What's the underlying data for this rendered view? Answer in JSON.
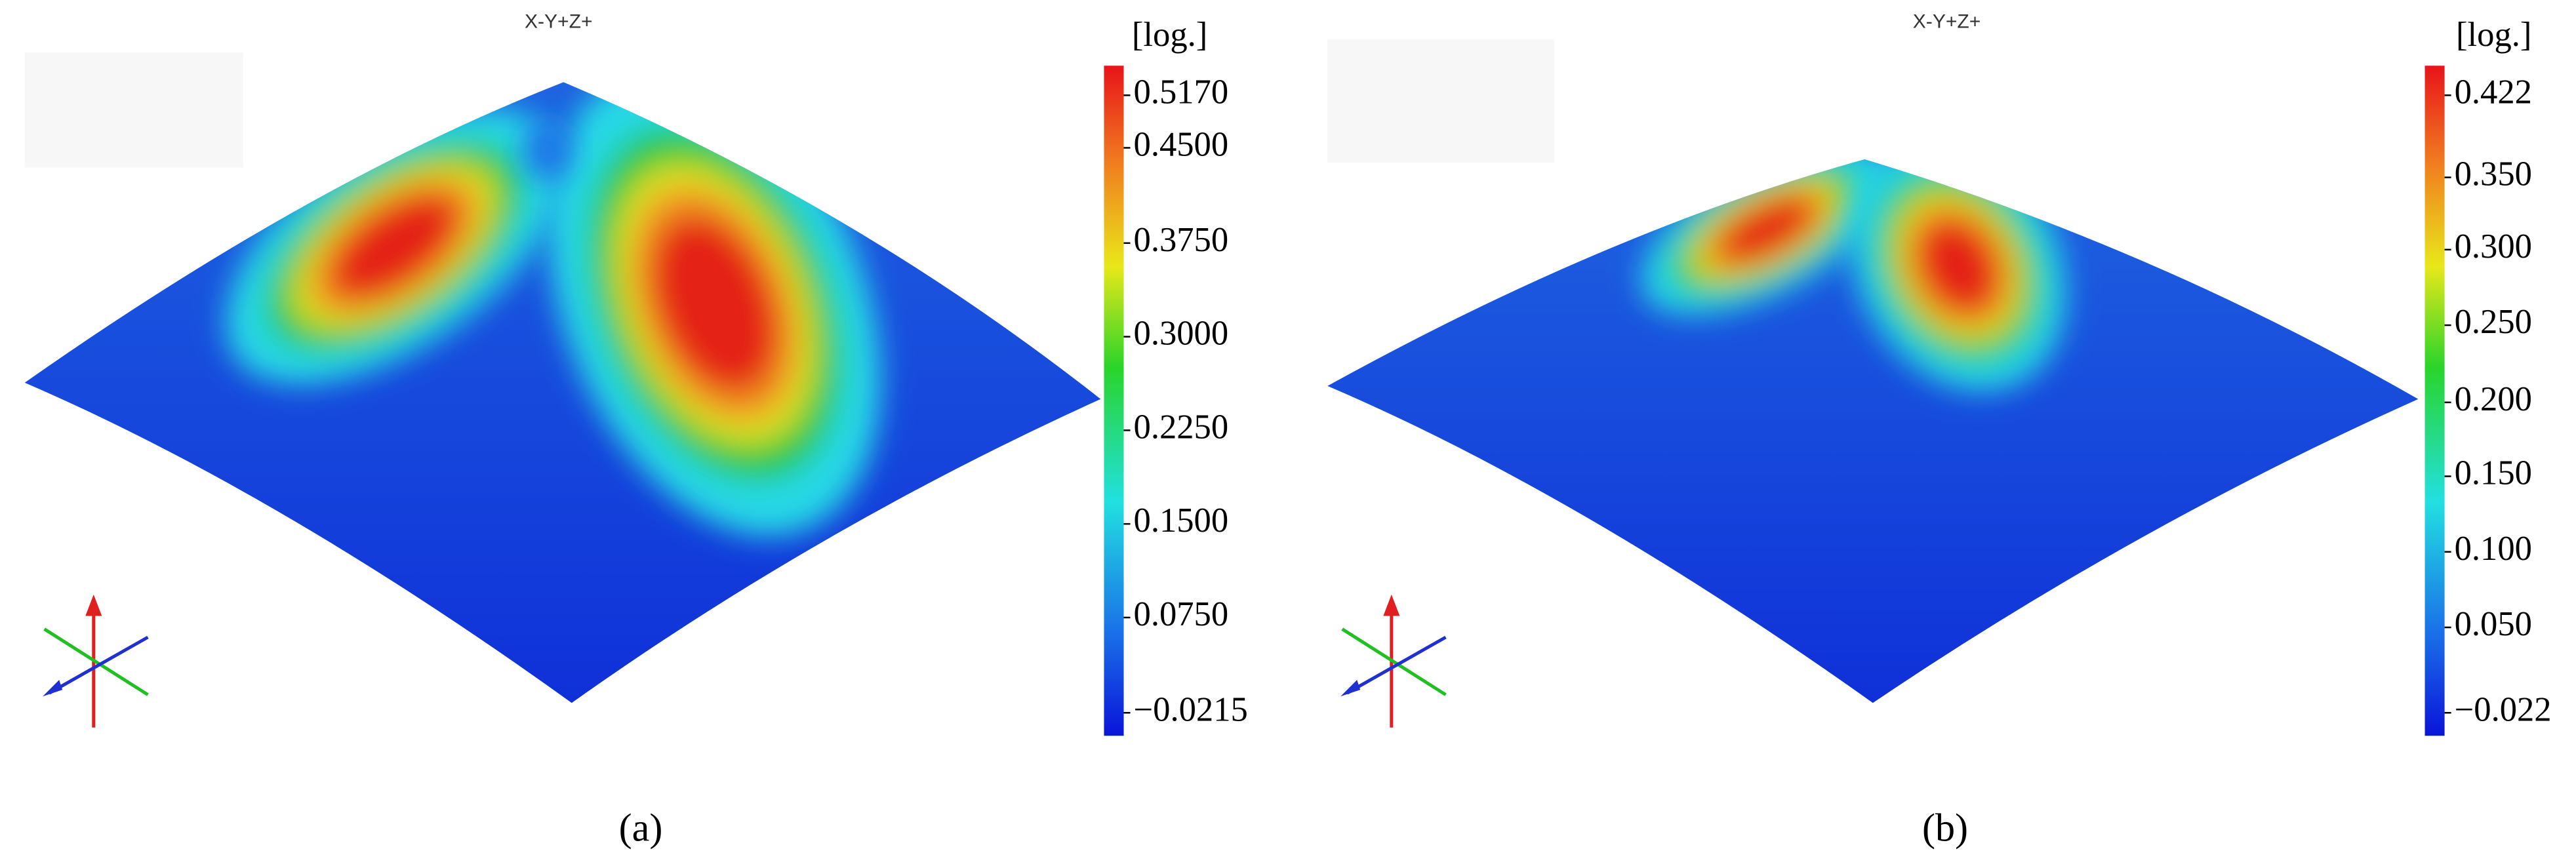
{
  "panels": [
    {
      "view": "X-Y+Z+",
      "unit": "[log.]",
      "colorbar_ticks": [
        "0.5170",
        "0.4500",
        "0.3750",
        "0.3000",
        "0.2250",
        "0.1500",
        "0.0750",
        "−0.0215"
      ],
      "caption": "(a)"
    },
    {
      "view": "X-Y+Z+",
      "unit": "[log.]",
      "colorbar_ticks": [
        "0.422",
        "0.350",
        "0.300",
        "0.250",
        "0.200",
        "0.150",
        "0.100",
        "0.050",
        "−0.022"
      ],
      "caption": "(b)"
    }
  ]
}
